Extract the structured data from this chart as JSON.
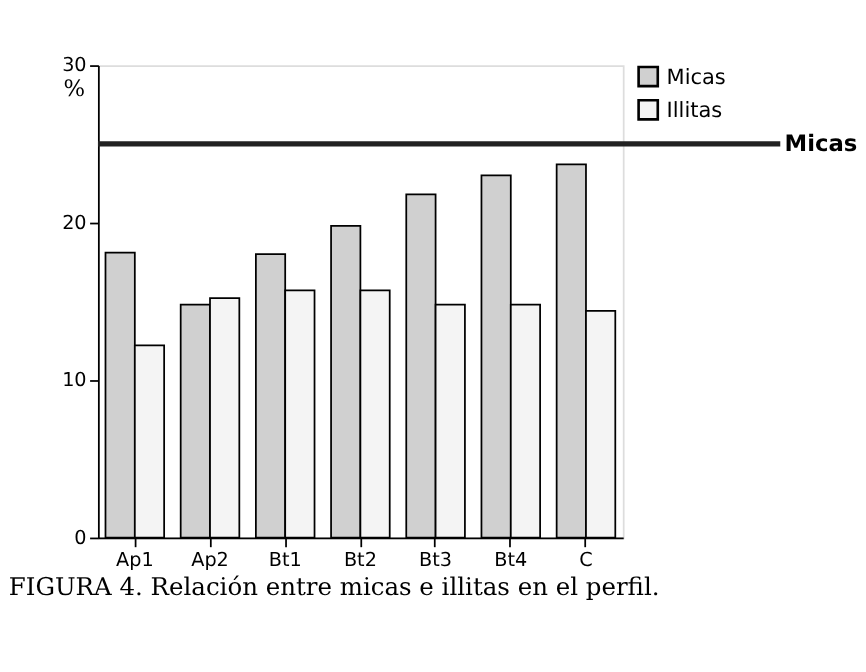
{
  "chart_data": {
    "type": "bar",
    "title": "FIGURA 4. Relación entre micas e illitas en el perfil.",
    "ylabel": "%",
    "categories": [
      "Ap1",
      "Ap2",
      "Bt1",
      "Bt2",
      "Bt3",
      "Bt4",
      "C"
    ],
    "series": [
      {
        "name": "Micas",
        "color": "#d0d0d0",
        "values": [
          18.1,
          14.8,
          18.0,
          19.8,
          21.8,
          23.0,
          23.7
        ]
      },
      {
        "name": "Illitas",
        "color": "#f4f4f4",
        "values": [
          12.2,
          15.2,
          15.7,
          15.7,
          14.8,
          14.8,
          14.4
        ]
      }
    ],
    "ylim": [
      0,
      30
    ],
    "yticks": [
      0,
      10,
      20,
      30
    ],
    "grid": false,
    "legend": "right",
    "ref_lines": [
      {
        "axis": "y",
        "value": 25,
        "label": "Micas",
        "color": "#222222"
      }
    ]
  }
}
